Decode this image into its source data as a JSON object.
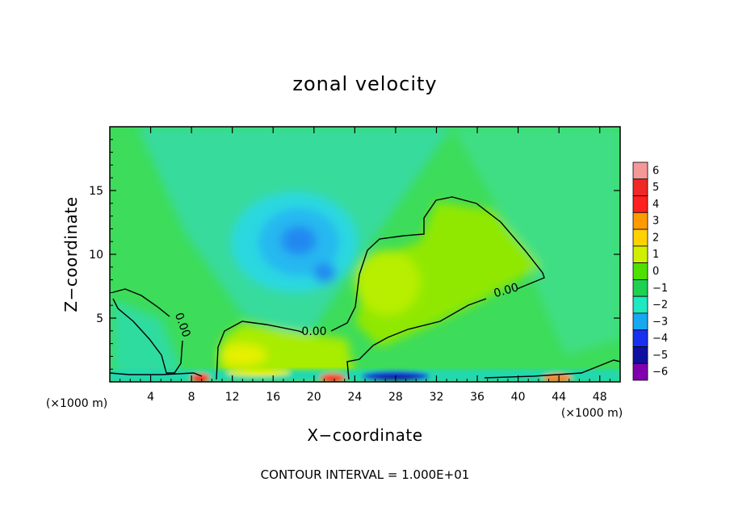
{
  "chart_data": {
    "type": "heatmap",
    "title": "zonal velocity",
    "xlabel": "X−coordinate",
    "ylabel": "Z−coordinate",
    "x_unit_label": "(×1000 m)",
    "xlim": [
      0,
      50
    ],
    "ylim": [
      0,
      20
    ],
    "x_ticks": [
      4,
      8,
      12,
      16,
      20,
      24,
      28,
      32,
      36,
      40,
      44,
      48
    ],
    "x_tick_labels": [
      "4",
      "8",
      "12",
      "16",
      "20",
      "24",
      "28",
      "32",
      "36",
      "40",
      "44",
      "48"
    ],
    "y_ticks": [
      5,
      10,
      15
    ],
    "y_tick_labels": [
      "5",
      "10",
      "15"
    ],
    "colorbar": {
      "levels": [
        6,
        5,
        4,
        3,
        2,
        1,
        0,
        -1,
        -2,
        -3,
        -4,
        -5,
        -6
      ],
      "labels": [
        "6",
        "5",
        "4",
        "3",
        "2",
        "1",
        "0",
        "−1",
        "−2",
        "−3",
        "−4",
        "−5",
        "−6"
      ],
      "colors": [
        "#f59898",
        "#f02828",
        "#ff2020",
        "#ff9b00",
        "#ffd100",
        "#d0f000",
        "#50e000",
        "#20d050",
        "#20e8c0",
        "#18a8f0",
        "#1830f0",
        "#1010a0",
        "#8000b0"
      ]
    },
    "contour_level_label": "0.00",
    "footer": "CONTOUR INTERVAL = 1.000E+01",
    "colors": {
      "background": "#3ddc5a",
      "frame": "#000000"
    }
  }
}
